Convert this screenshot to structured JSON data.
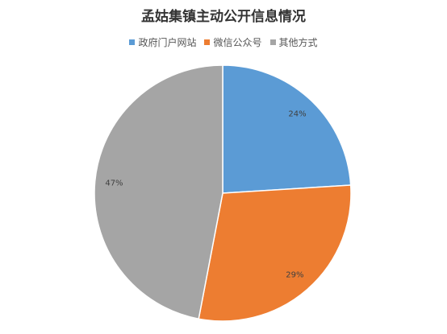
{
  "chart_data": {
    "type": "pie",
    "title": "孟姑集镇主动公开信息情况",
    "categories": [
      "政府门户网站",
      "微信公众号",
      "其他方式"
    ],
    "values": [
      24,
      29,
      47
    ],
    "value_labels": [
      "24%",
      "29%",
      "47%"
    ],
    "colors": [
      "#5b9bd5",
      "#ed7d31",
      "#a5a5a5"
    ],
    "legend": "top"
  }
}
